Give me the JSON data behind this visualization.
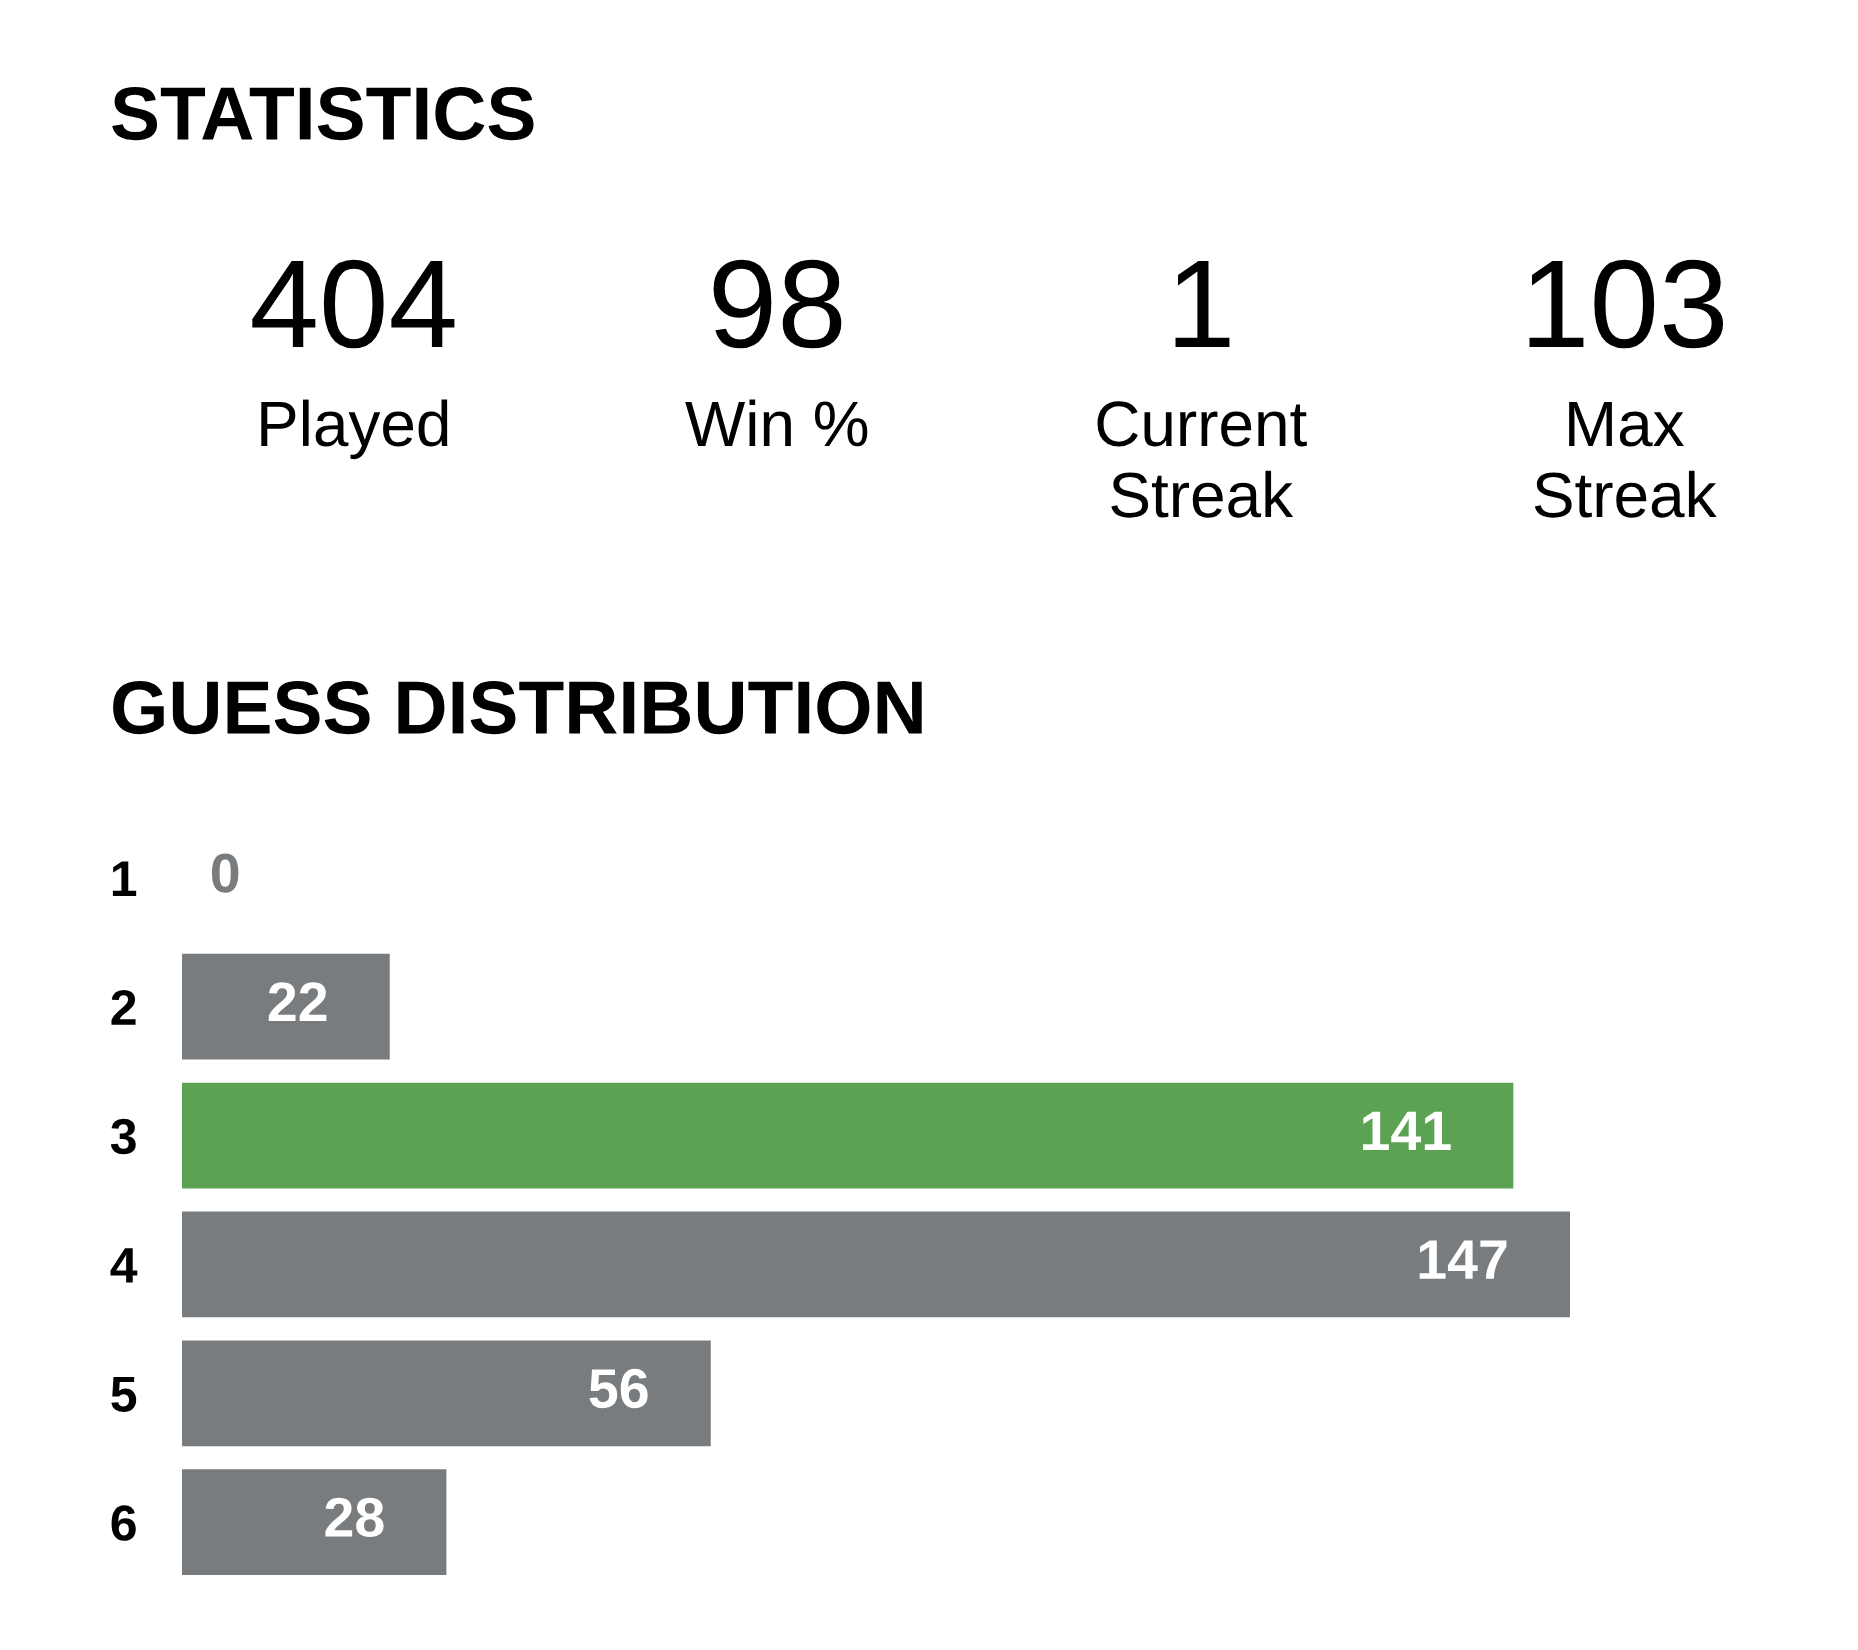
{
  "chart_data": [
    {
      "type": "other",
      "title": "STATISTICS",
      "categories": [
        "Played",
        "Win %",
        "Current\nStreak",
        "Max\nStreak"
      ],
      "values": [
        404,
        98,
        1,
        103
      ],
      "data_labels": true
    },
    {
      "type": "bar",
      "orientation": "horizontal",
      "title": "GUESS DISTRIBUTION",
      "categories": [
        "1",
        "2",
        "3",
        "4",
        "5",
        "6"
      ],
      "values": [
        0,
        22,
        141,
        147,
        56,
        28
      ],
      "colors": [
        "#787c7e",
        "#787c7e",
        "#5ba352",
        "#787c7e",
        "#787c7e",
        "#787c7e"
      ],
      "data_labels": true
    }
  ]
}
